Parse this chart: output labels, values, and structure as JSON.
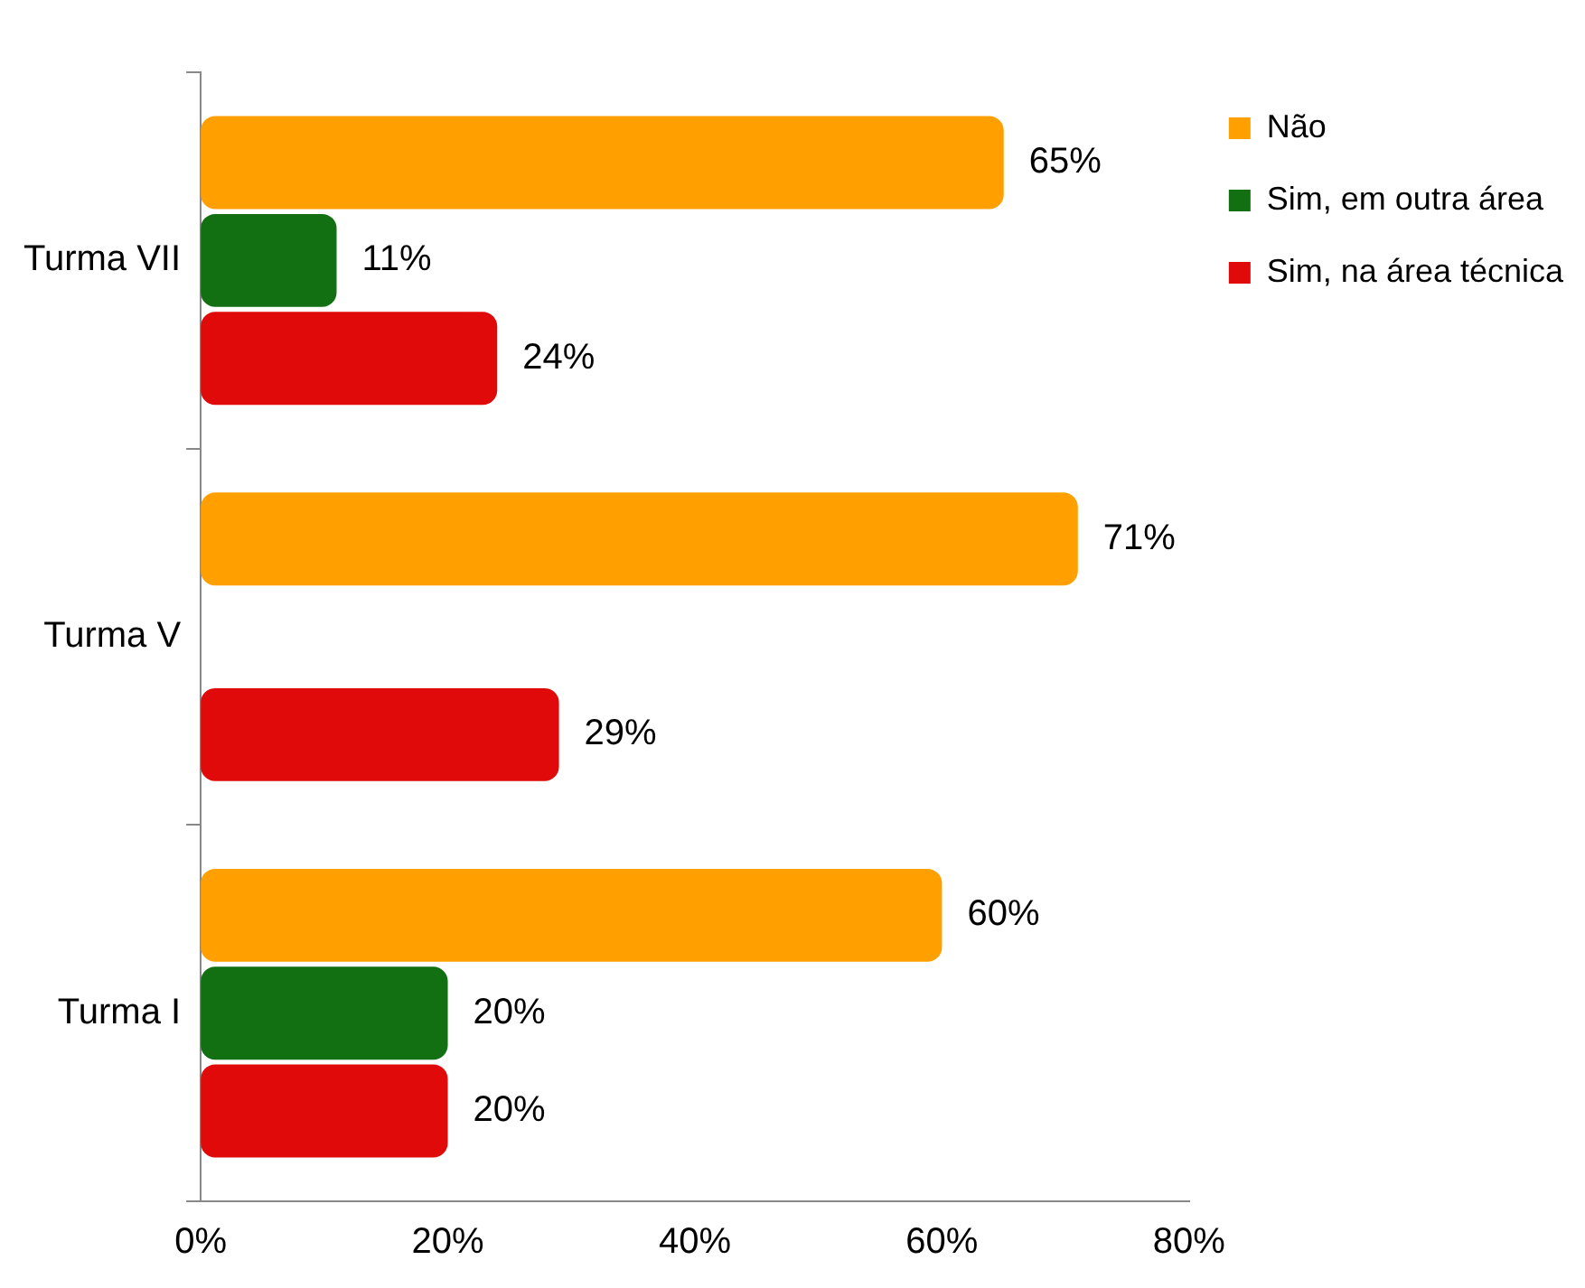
{
  "chart_data": {
    "type": "bar",
    "orientation": "horizontal",
    "categories": [
      "Turma VII",
      "Turma V",
      "Turma I"
    ],
    "series": [
      {
        "name": "Não",
        "color": "#ffa000",
        "values": [
          65,
          71,
          60
        ],
        "value_labels": [
          "65%",
          "71%",
          "60%"
        ]
      },
      {
        "name": "Sim, em outra área",
        "color": "#127012",
        "values": [
          11,
          null,
          20
        ],
        "value_labels": [
          "11%",
          null,
          "20%"
        ]
      },
      {
        "name": "Sim, na área técnica",
        "color": "#e00a0a",
        "values": [
          24,
          29,
          20
        ],
        "value_labels": [
          "24%",
          "29%",
          "20%"
        ]
      }
    ],
    "xlim": [
      0,
      80
    ],
    "xticks": [
      {
        "value": 0,
        "label": "0%"
      },
      {
        "value": 20,
        "label": "20%"
      },
      {
        "value": 40,
        "label": "40%"
      },
      {
        "value": 60,
        "label": "60%"
      },
      {
        "value": 80,
        "label": "80%"
      }
    ],
    "grid": false,
    "legend": "top right"
  }
}
